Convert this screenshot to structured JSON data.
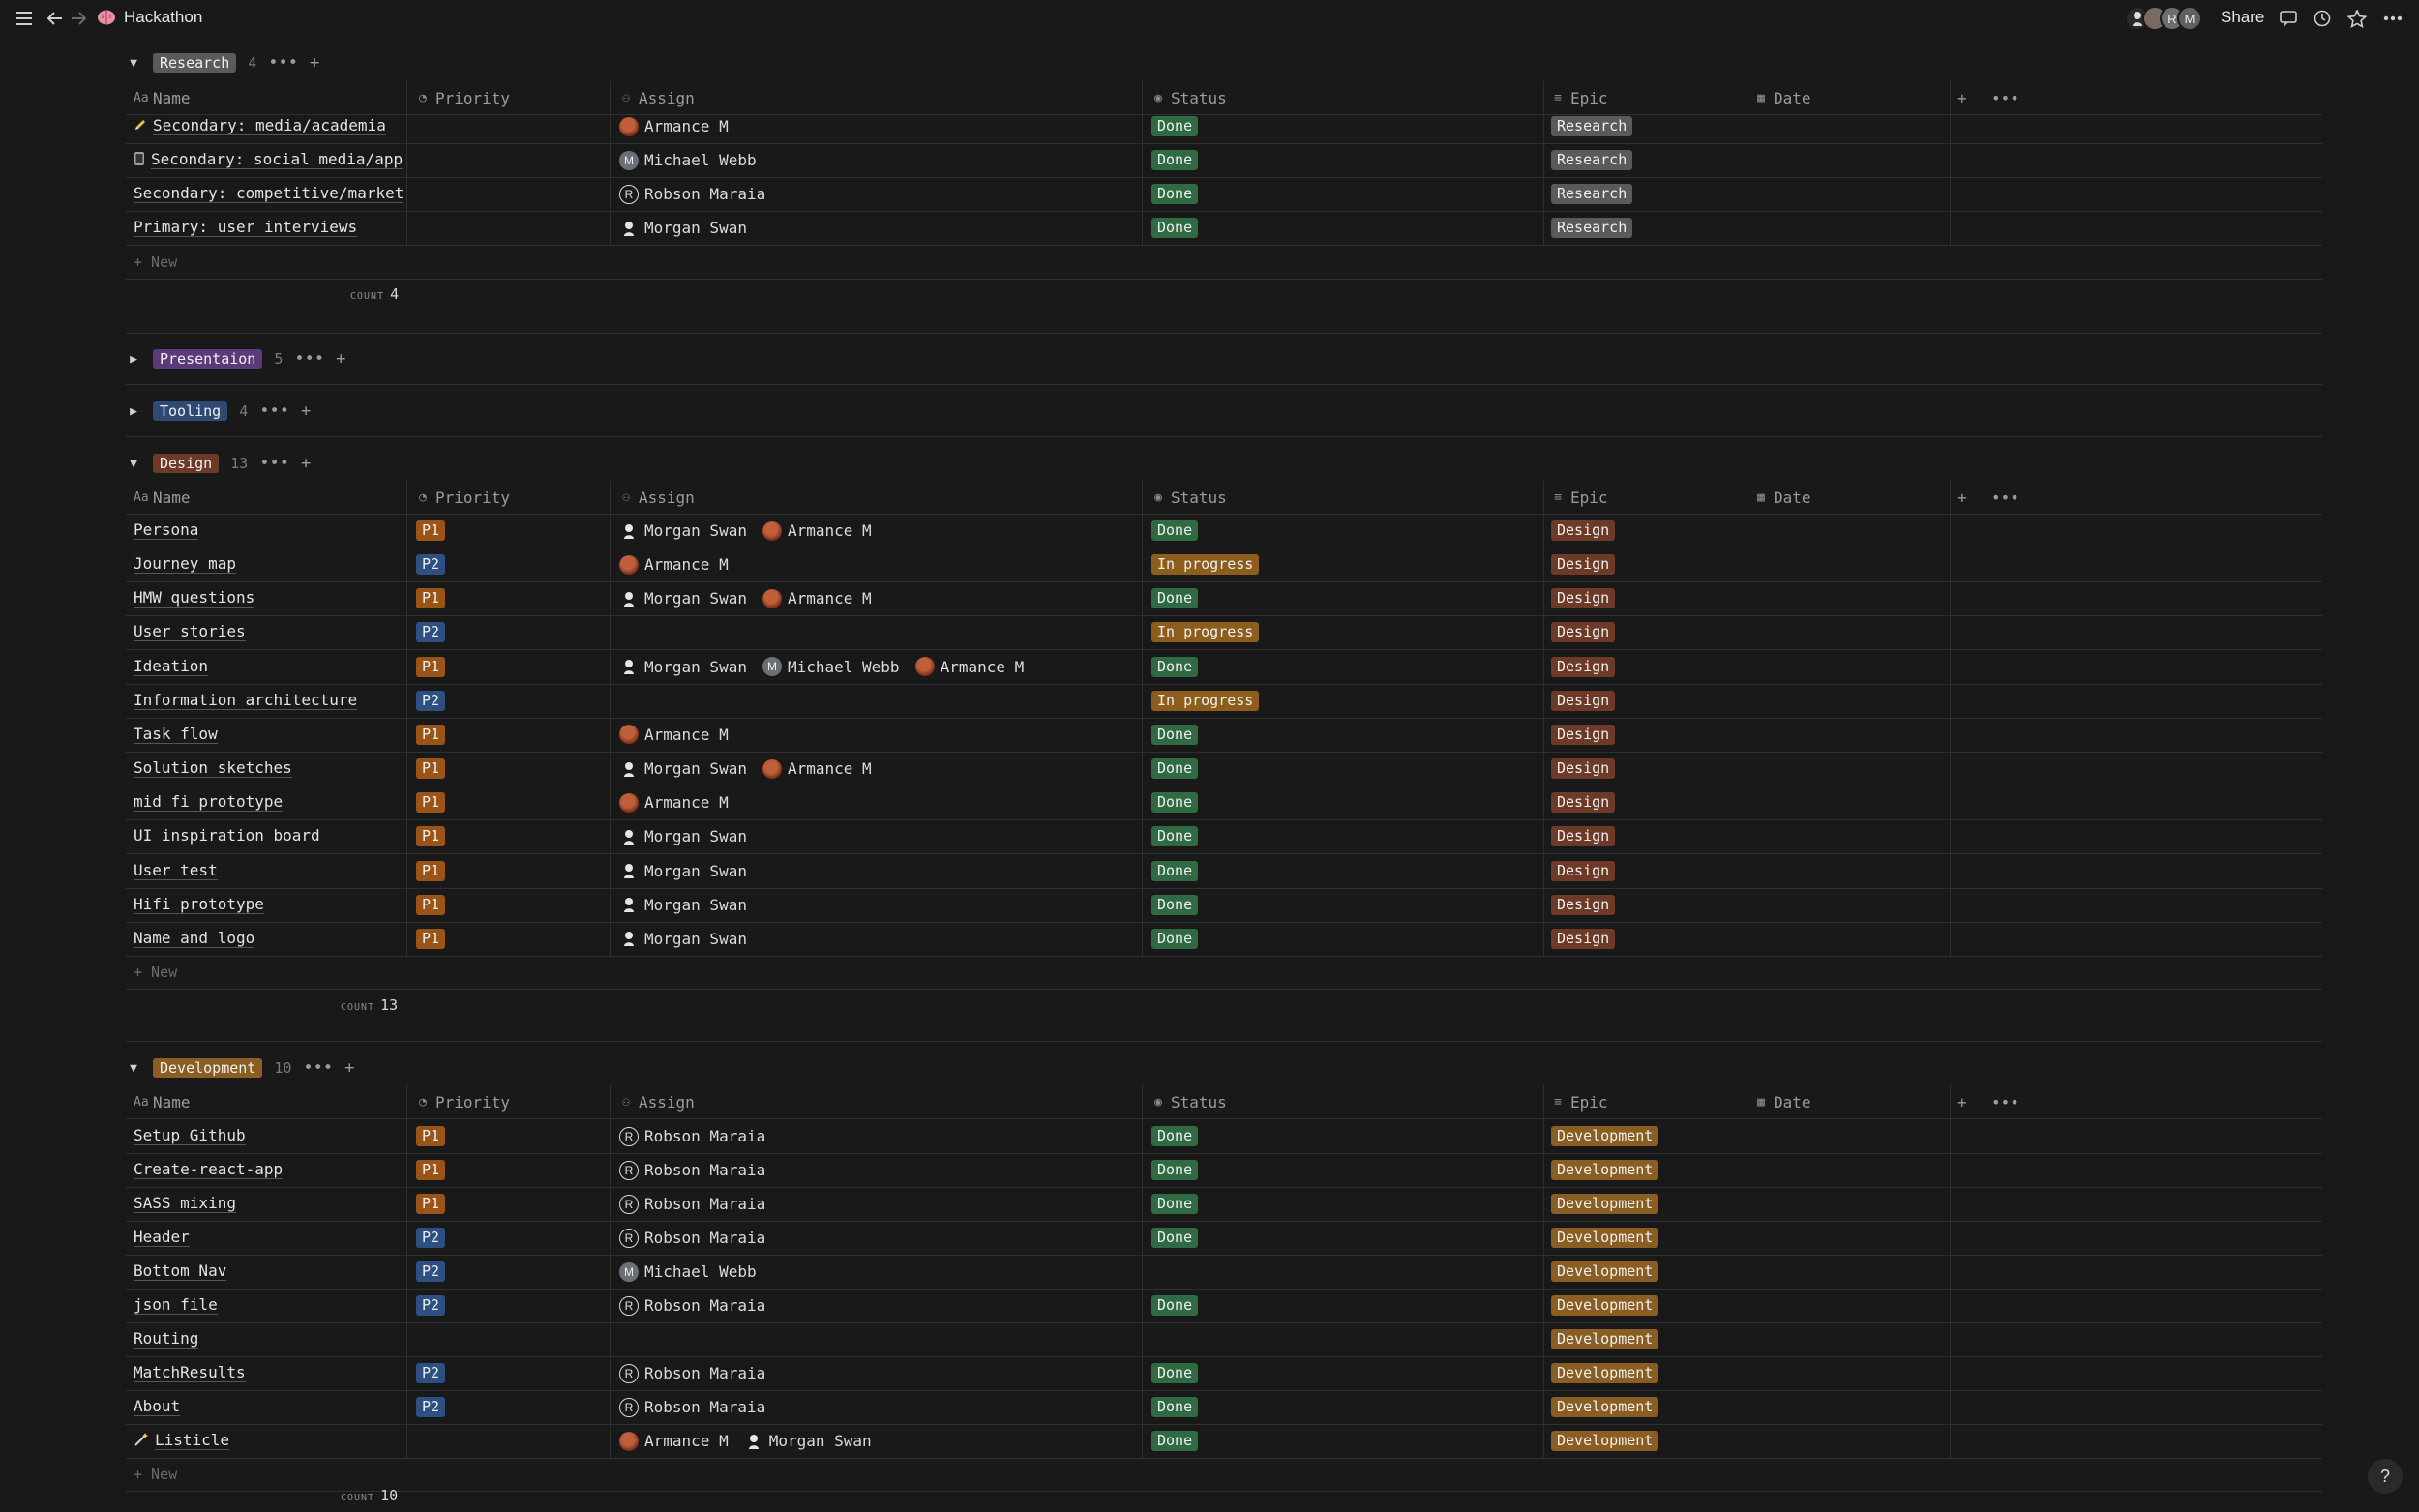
{
  "topbar": {
    "page_icon": "brain-emoji",
    "page_title": "Hackathon",
    "share_label": "Share",
    "avatar_letters": [
      "R",
      "M"
    ]
  },
  "columns": {
    "name": "Name",
    "priority": "Priority",
    "assign": "Assign",
    "status": "Status",
    "epic": "Epic",
    "date": "Date"
  },
  "new_label": "New",
  "count_label": "COUNT",
  "colors": {
    "research": "#5a5a5a",
    "presentation": "#5b3a7a",
    "tooling": "#2e4a74",
    "design": "#6e3a28",
    "development": "#8a5e22",
    "p1": "#9a5418",
    "p2": "#2e4f82",
    "done": "#2f6a43",
    "in_progress": "#8d5d1b"
  },
  "groups": {
    "research": {
      "label": "Research",
      "count": "4",
      "footer_count": "4",
      "rows": [
        {
          "icon": "pencil-icon",
          "name": "Secondary: media/academia",
          "priority": "",
          "assign": [
            {
              "n": "Armance M",
              "a": "armance"
            }
          ],
          "status": "Done",
          "epic": "Research"
        },
        {
          "icon": "phone-icon",
          "name": "Secondary: social media/app",
          "priority": "",
          "assign": [
            {
              "n": "Michael Webb",
              "a": "M"
            }
          ],
          "status": "Done",
          "epic": "Research"
        },
        {
          "icon": "",
          "name": "Secondary: competitive/market",
          "priority": "",
          "assign": [
            {
              "n": "Robson Maraia",
              "a": "R"
            }
          ],
          "status": "Done",
          "epic": "Research"
        },
        {
          "icon": "",
          "name": "Primary: user interviews",
          "priority": "",
          "assign": [
            {
              "n": "Morgan Swan",
              "a": "morgan"
            }
          ],
          "status": "Done",
          "epic": "Research"
        }
      ]
    },
    "presentation": {
      "label": "Presentaion",
      "count": "5"
    },
    "tooling": {
      "label": "Tooling",
      "count": "4"
    },
    "design": {
      "label": "Design",
      "count": "13",
      "footer_count": "13",
      "rows": [
        {
          "name": "Persona",
          "priority": "P1",
          "assign": [
            {
              "n": "Morgan Swan",
              "a": "morgan"
            },
            {
              "n": "Armance M",
              "a": "armance"
            }
          ],
          "status": "Done",
          "epic": "Design"
        },
        {
          "name": "Journey map",
          "priority": "P2",
          "assign": [
            {
              "n": "Armance M",
              "a": "armance"
            }
          ],
          "status": "In progress",
          "epic": "Design"
        },
        {
          "name": "HMW questions",
          "priority": "P1",
          "assign": [
            {
              "n": "Morgan Swan",
              "a": "morgan"
            },
            {
              "n": "Armance M",
              "a": "armance"
            }
          ],
          "status": "Done",
          "epic": "Design"
        },
        {
          "name": "User stories",
          "priority": "P2",
          "assign": [],
          "status": "In progress",
          "epic": "Design"
        },
        {
          "name": "Ideation",
          "priority": "P1",
          "assign": [
            {
              "n": "Morgan Swan",
              "a": "morgan"
            },
            {
              "n": "Michael Webb",
              "a": "M"
            },
            {
              "n": "Armance M",
              "a": "armance"
            }
          ],
          "status": "Done",
          "epic": "Design"
        },
        {
          "name": "Information architecture",
          "priority": "P2",
          "assign": [],
          "status": "In progress",
          "epic": "Design"
        },
        {
          "name": "Task flow",
          "priority": "P1",
          "assign": [
            {
              "n": "Armance M",
              "a": "armance"
            }
          ],
          "status": "Done",
          "epic": "Design"
        },
        {
          "name": "Solution sketches",
          "priority": "P1",
          "assign": [
            {
              "n": "Morgan Swan",
              "a": "morgan"
            },
            {
              "n": "Armance M",
              "a": "armance"
            }
          ],
          "status": "Done",
          "epic": "Design"
        },
        {
          "name": "mid fi prototype",
          "priority": "P1",
          "assign": [
            {
              "n": "Armance M",
              "a": "armance"
            }
          ],
          "status": "Done",
          "epic": "Design"
        },
        {
          "name": "UI inspiration board",
          "priority": "P1",
          "assign": [
            {
              "n": "Morgan Swan",
              "a": "morgan"
            }
          ],
          "status": "Done",
          "epic": "Design"
        },
        {
          "name": "User test",
          "priority": "P1",
          "assign": [
            {
              "n": "Morgan Swan",
              "a": "morgan"
            }
          ],
          "status": "Done",
          "epic": "Design"
        },
        {
          "name": "Hifi prototype",
          "priority": "P1",
          "assign": [
            {
              "n": "Morgan Swan",
              "a": "morgan"
            }
          ],
          "status": "Done",
          "epic": "Design"
        },
        {
          "name": "Name and logo",
          "priority": "P1",
          "assign": [
            {
              "n": "Morgan Swan",
              "a": "morgan"
            }
          ],
          "status": "Done",
          "epic": "Design"
        }
      ]
    },
    "development": {
      "label": "Development",
      "count": "10",
      "footer_count": "10",
      "rows": [
        {
          "name": "Setup Github",
          "priority": "P1",
          "assign": [
            {
              "n": "Robson Maraia",
              "a": "R"
            }
          ],
          "status": "Done",
          "epic": "Development"
        },
        {
          "name": "Create-react-app",
          "priority": "P1",
          "assign": [
            {
              "n": "Robson Maraia",
              "a": "R"
            }
          ],
          "status": "Done",
          "epic": "Development"
        },
        {
          "name": "SASS mixing",
          "priority": "P1",
          "assign": [
            {
              "n": "Robson Maraia",
              "a": "R"
            }
          ],
          "status": "Done",
          "epic": "Development"
        },
        {
          "name": "Header",
          "priority": "P2",
          "assign": [
            {
              "n": "Robson Maraia",
              "a": "R"
            }
          ],
          "status": "Done",
          "epic": "Development"
        },
        {
          "name": "Bottom Nav",
          "priority": "P2",
          "assign": [
            {
              "n": "Michael Webb",
              "a": "M"
            }
          ],
          "status": "",
          "epic": "Development"
        },
        {
          "name": "json file",
          "priority": "P2",
          "assign": [
            {
              "n": "Robson Maraia",
              "a": "R"
            }
          ],
          "status": "Done",
          "epic": "Development"
        },
        {
          "name": "Routing",
          "priority": "",
          "assign": [],
          "status": "",
          "epic": "Development"
        },
        {
          "name": "MatchResults",
          "priority": "P2",
          "assign": [
            {
              "n": "Robson Maraia",
              "a": "R"
            }
          ],
          "status": "Done",
          "epic": "Development"
        },
        {
          "name": "About",
          "priority": "P2",
          "assign": [
            {
              "n": "Robson Maraia",
              "a": "R"
            }
          ],
          "status": "Done",
          "epic": "Development"
        },
        {
          "icon": "wand-icon",
          "name": "Listicle",
          "priority": "",
          "assign": [
            {
              "n": "Armance M",
              "a": "armance"
            },
            {
              "n": "Morgan Swan",
              "a": "morgan"
            }
          ],
          "status": "Done",
          "epic": "Development"
        }
      ]
    }
  }
}
